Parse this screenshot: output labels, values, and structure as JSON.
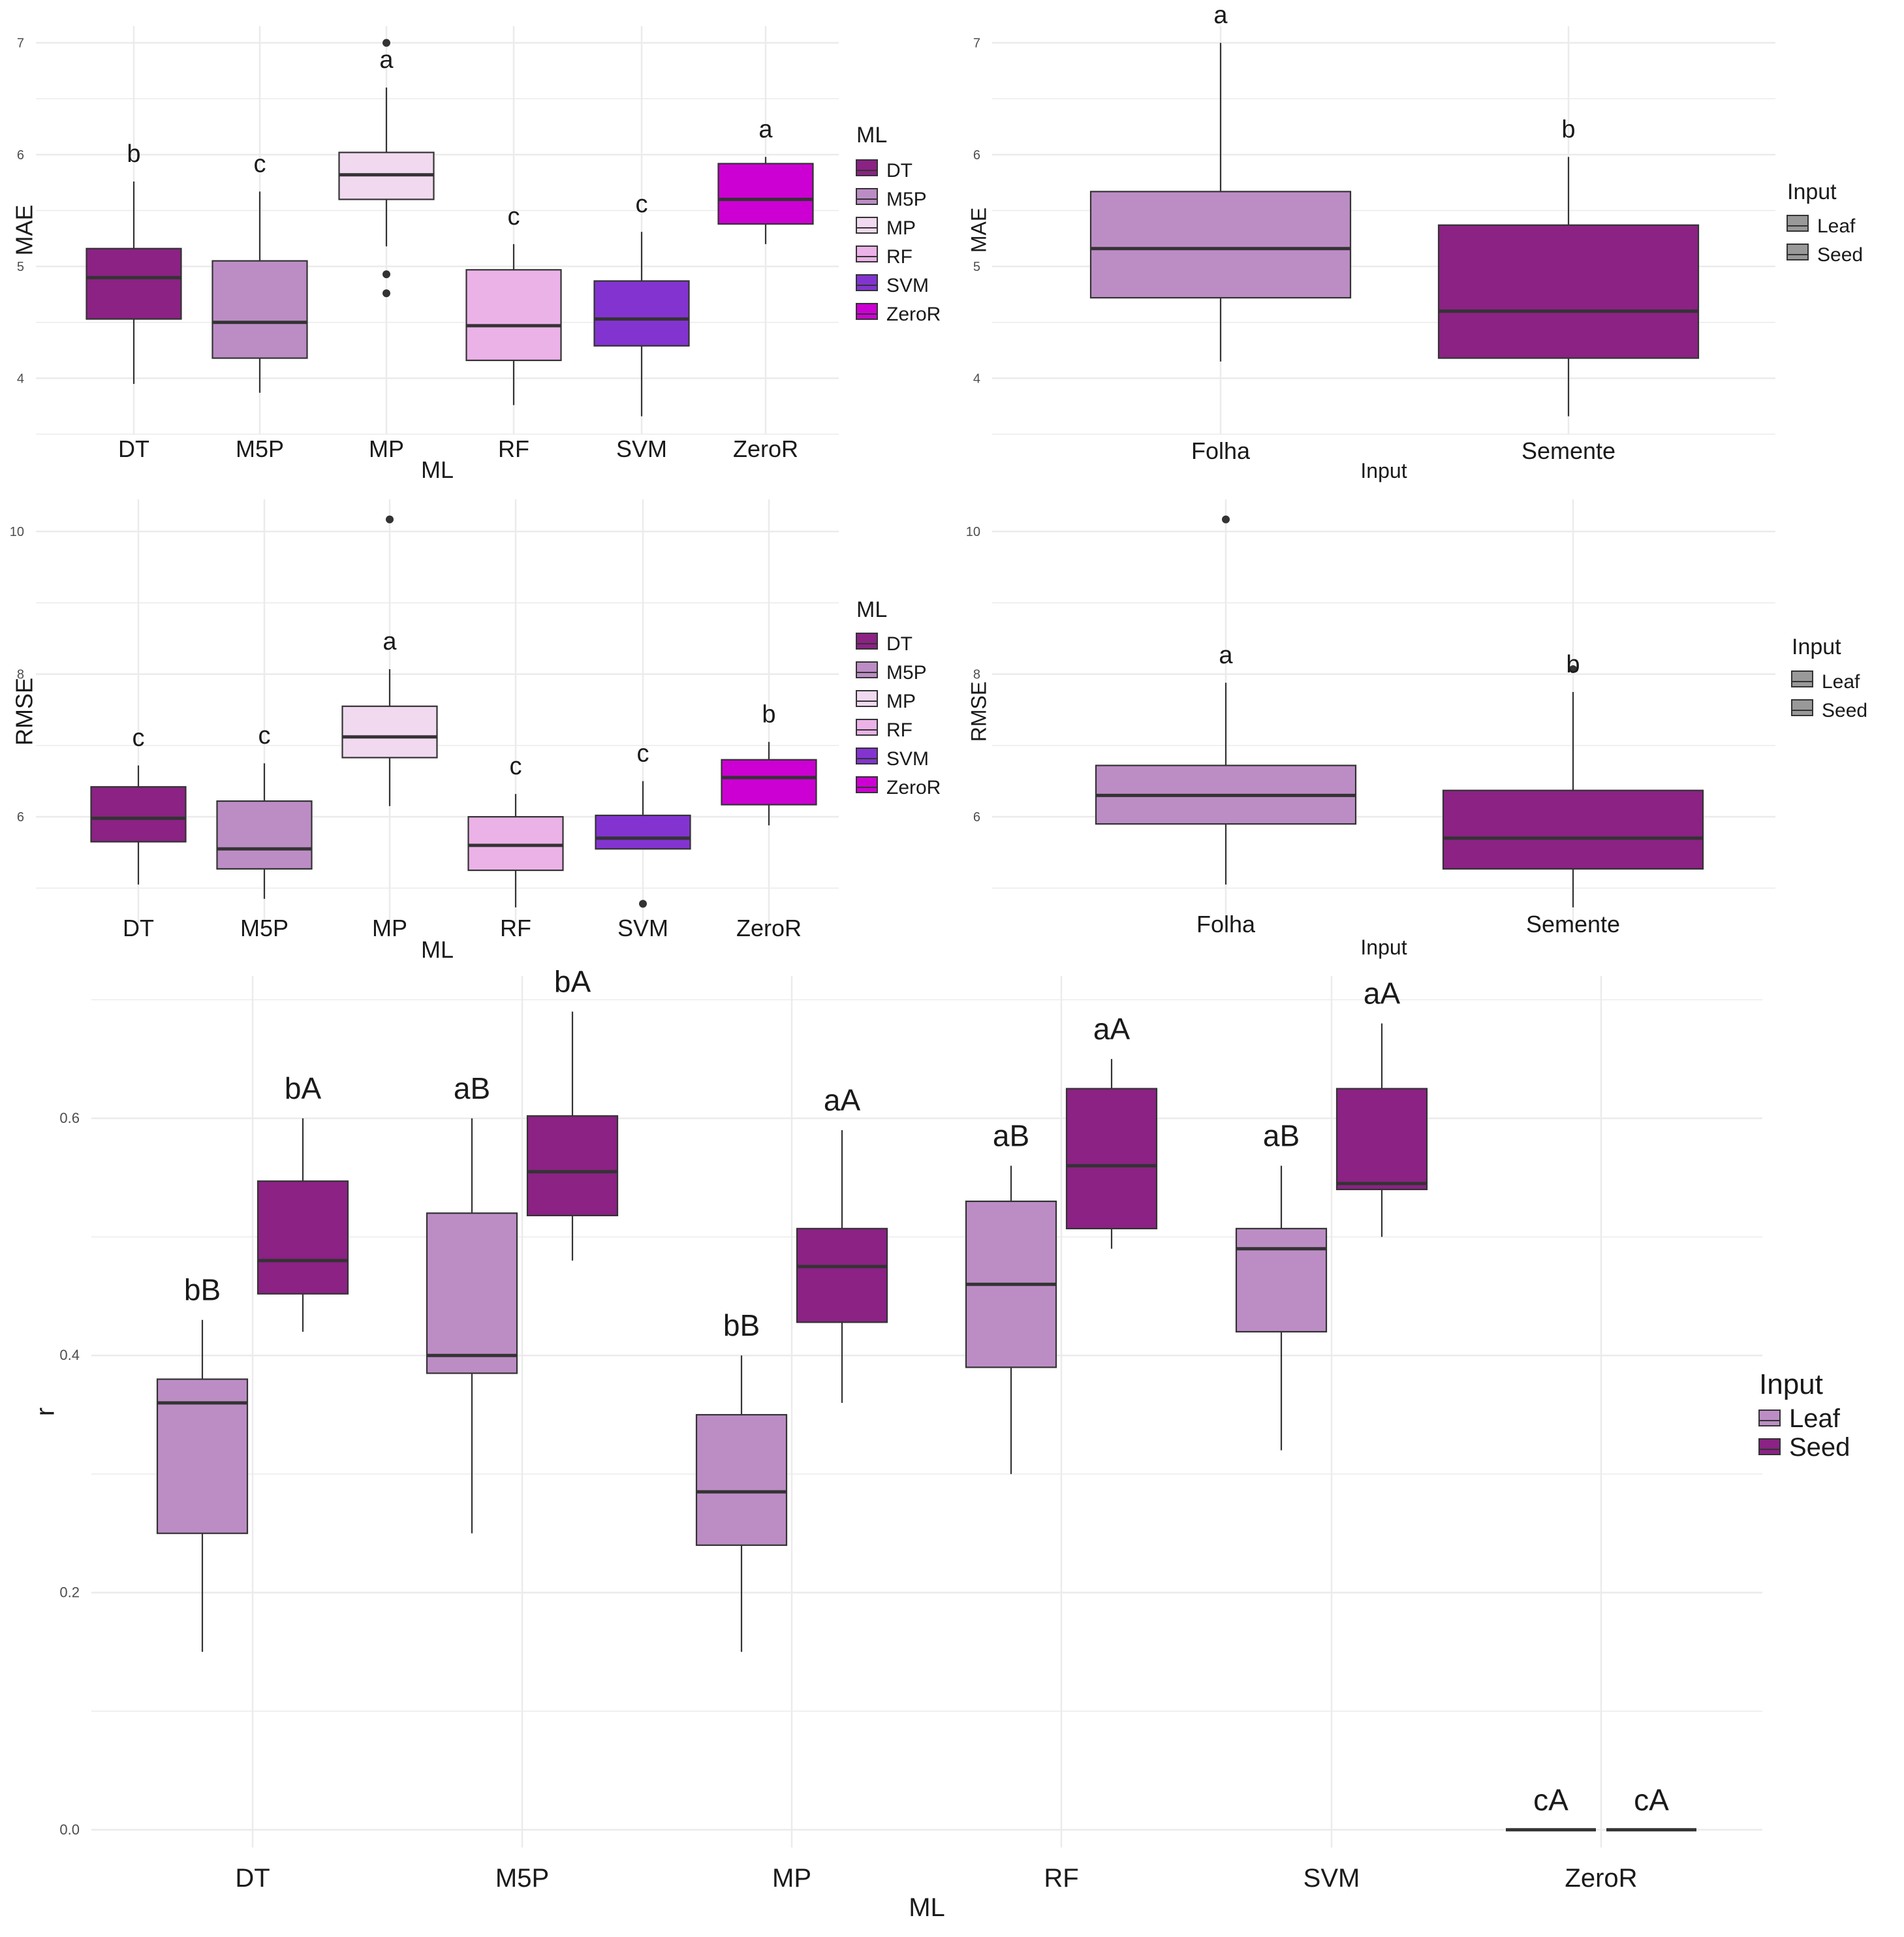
{
  "colors": {
    "grid": "#ebebeb",
    "box_stroke": "#333333",
    "whisker": "#333333",
    "text": "#1a1a1a",
    "tick_text": "#4d4d4d"
  },
  "chart_data": [
    {
      "type": "box",
      "title": "",
      "xlabel": "ML",
      "ylabel": "MAE",
      "ylim": [
        3.5,
        7.15
      ],
      "yticks": [
        4,
        5,
        6,
        7
      ],
      "categories": [
        "DT",
        "M5P",
        "MP",
        "RF",
        "SVM",
        "ZeroR"
      ],
      "legend": {
        "title": "ML",
        "position": "right",
        "entries": [
          "DT",
          "M5P",
          "MP",
          "RF",
          "SVM",
          "ZeroR"
        ]
      },
      "boxes": [
        {
          "category": "DT",
          "color": "#8b2284",
          "min": 3.95,
          "q1": 4.53,
          "median": 4.9,
          "q3": 5.16,
          "max": 5.76,
          "outliers": [],
          "letter": "b"
        },
        {
          "category": "M5P",
          "color": "#bc8dc5",
          "min": 3.87,
          "q1": 4.18,
          "median": 4.5,
          "q3": 5.05,
          "max": 5.67,
          "outliers": [],
          "letter": "c"
        },
        {
          "category": "MP",
          "color": "#f1d9ef",
          "min": 5.18,
          "q1": 5.6,
          "median": 5.82,
          "q3": 6.02,
          "max": 6.6,
          "outliers": [
            7.0,
            4.93,
            4.76
          ],
          "letter": "a"
        },
        {
          "category": "RF",
          "color": "#ebb2e8",
          "min": 3.76,
          "q1": 4.16,
          "median": 4.47,
          "q3": 4.97,
          "max": 5.2,
          "outliers": [],
          "letter": "c"
        },
        {
          "category": "SVM",
          "color": "#8334d0",
          "min": 3.66,
          "q1": 4.29,
          "median": 4.53,
          "q3": 4.87,
          "max": 5.31,
          "outliers": [],
          "letter": "c"
        },
        {
          "category": "ZeroR",
          "color": "#cc00d2",
          "min": 5.2,
          "q1": 5.38,
          "median": 5.6,
          "q3": 5.92,
          "max": 5.98,
          "outliers": [],
          "letter": "a"
        }
      ]
    },
    {
      "type": "box",
      "title": "",
      "xlabel": "Input",
      "ylabel": "MAE",
      "ylim": [
        3.5,
        7.15
      ],
      "yticks": [
        4,
        5,
        6,
        7
      ],
      "categories": [
        "Folha",
        "Semente"
      ],
      "legend": {
        "title": "Input",
        "position": "right",
        "entries": [
          "Leaf",
          "Seed"
        ]
      },
      "boxes": [
        {
          "category": "Folha",
          "color": "#bc8dc5",
          "min": 4.15,
          "q1": 4.72,
          "median": 5.16,
          "q3": 5.67,
          "max": 7.0,
          "outliers": [],
          "letter": "a"
        },
        {
          "category": "Semente",
          "color": "#8b2284",
          "min": 3.66,
          "q1": 4.18,
          "median": 4.6,
          "q3": 5.37,
          "max": 5.98,
          "outliers": [],
          "letter": "b"
        }
      ]
    },
    {
      "type": "box",
      "title": "",
      "xlabel": "ML",
      "ylabel": "RMSE",
      "ylim": [
        4.5,
        10.45
      ],
      "yticks": [
        6,
        8,
        10
      ],
      "categories": [
        "DT",
        "M5P",
        "MP",
        "RF",
        "SVM",
        "ZeroR"
      ],
      "legend": {
        "title": "ML",
        "position": "right",
        "entries": [
          "DT",
          "M5P",
          "MP",
          "RF",
          "SVM",
          "ZeroR"
        ]
      },
      "boxes": [
        {
          "category": "DT",
          "color": "#8b2284",
          "min": 5.05,
          "q1": 5.65,
          "median": 5.98,
          "q3": 6.42,
          "max": 6.72,
          "outliers": [],
          "letter": "c"
        },
        {
          "category": "M5P",
          "color": "#bc8dc5",
          "min": 4.85,
          "q1": 5.27,
          "median": 5.55,
          "q3": 6.22,
          "max": 6.75,
          "outliers": [],
          "letter": "c"
        },
        {
          "category": "MP",
          "color": "#f1d9ef",
          "min": 6.15,
          "q1": 6.83,
          "median": 7.12,
          "q3": 7.55,
          "max": 8.07,
          "outliers": [
            10.17
          ],
          "letter": "a"
        },
        {
          "category": "RF",
          "color": "#ebb2e8",
          "min": 4.73,
          "q1": 5.25,
          "median": 5.6,
          "q3": 6.0,
          "max": 6.32,
          "outliers": [],
          "letter": "c"
        },
        {
          "category": "SVM",
          "color": "#8334d0",
          "min": 5.55,
          "q1": 5.55,
          "median": 5.7,
          "q3": 6.02,
          "max": 6.5,
          "outliers": [
            4.78
          ],
          "letter": "c"
        },
        {
          "category": "ZeroR",
          "color": "#cc00d2",
          "min": 5.88,
          "q1": 6.17,
          "median": 6.55,
          "q3": 6.8,
          "max": 7.05,
          "outliers": [],
          "letter": "b"
        }
      ]
    },
    {
      "type": "box",
      "title": "",
      "xlabel": "Input",
      "ylabel": "RMSE",
      "ylim": [
        4.5,
        10.45
      ],
      "yticks": [
        6,
        8,
        10
      ],
      "categories": [
        "Folha",
        "Semente"
      ],
      "legend": {
        "title": "Input",
        "position": "right",
        "entries": [
          "Leaf",
          "Seed"
        ]
      },
      "boxes": [
        {
          "category": "Folha",
          "color": "#bc8dc5",
          "min": 5.05,
          "q1": 5.9,
          "median": 6.3,
          "q3": 6.72,
          "max": 7.88,
          "outliers": [
            10.17
          ],
          "letter": "a"
        },
        {
          "category": "Semente",
          "color": "#8b2284",
          "min": 4.73,
          "q1": 5.27,
          "median": 5.7,
          "q3": 6.37,
          "max": 7.75,
          "outliers": [
            8.07
          ],
          "letter": "b"
        }
      ]
    },
    {
      "type": "box",
      "title": "",
      "xlabel": "ML",
      "ylabel": "r",
      "ylim": [
        -0.015,
        0.72
      ],
      "yticks": [
        0.0,
        0.2,
        0.4,
        0.6
      ],
      "categories": [
        "DT",
        "M5P",
        "MP",
        "RF",
        "SVM",
        "ZeroR"
      ],
      "legend": {
        "title": "Input",
        "position": "right",
        "entries": [
          "Leaf",
          "Seed"
        ]
      },
      "boxes": [
        {
          "category": "DT",
          "group": "Leaf",
          "color": "#bc8dc5",
          "min": 0.15,
          "q1": 0.25,
          "median": 0.36,
          "q3": 0.38,
          "max": 0.43,
          "outliers": [],
          "letter": "bB"
        },
        {
          "category": "DT",
          "group": "Seed",
          "color": "#8b2284",
          "min": 0.42,
          "q1": 0.452,
          "median": 0.48,
          "q3": 0.547,
          "max": 0.6,
          "outliers": [],
          "letter": "bA"
        },
        {
          "category": "M5P",
          "group": "Leaf",
          "color": "#bc8dc5",
          "min": 0.25,
          "q1": 0.385,
          "median": 0.4,
          "q3": 0.52,
          "max": 0.6,
          "outliers": [],
          "letter": "aB"
        },
        {
          "category": "M5P",
          "group": "Seed",
          "color": "#8b2284",
          "min": 0.48,
          "q1": 0.518,
          "median": 0.555,
          "q3": 0.602,
          "max": 0.69,
          "outliers": [],
          "letter": "bA"
        },
        {
          "category": "MP",
          "group": "Leaf",
          "color": "#bc8dc5",
          "min": 0.15,
          "q1": 0.24,
          "median": 0.285,
          "q3": 0.35,
          "max": 0.4,
          "outliers": [],
          "letter": "bB"
        },
        {
          "category": "MP",
          "group": "Seed",
          "color": "#8b2284",
          "min": 0.36,
          "q1": 0.428,
          "median": 0.475,
          "q3": 0.507,
          "max": 0.59,
          "outliers": [],
          "letter": "aA"
        },
        {
          "category": "RF",
          "group": "Leaf",
          "color": "#bc8dc5",
          "min": 0.3,
          "q1": 0.39,
          "median": 0.46,
          "q3": 0.53,
          "max": 0.56,
          "outliers": [],
          "letter": "aB"
        },
        {
          "category": "RF",
          "group": "Seed",
          "color": "#8b2284",
          "min": 0.49,
          "q1": 0.507,
          "median": 0.56,
          "q3": 0.625,
          "max": 0.65,
          "outliers": [],
          "letter": "aA"
        },
        {
          "category": "SVM",
          "group": "Leaf",
          "color": "#bc8dc5",
          "min": 0.32,
          "q1": 0.42,
          "median": 0.49,
          "q3": 0.507,
          "max": 0.56,
          "outliers": [],
          "letter": "aB"
        },
        {
          "category": "SVM",
          "group": "Seed",
          "color": "#8b2284",
          "min": 0.5,
          "q1": 0.54,
          "median": 0.545,
          "q3": 0.625,
          "max": 0.68,
          "outliers": [],
          "letter": "aA"
        },
        {
          "category": "ZeroR",
          "group": "Leaf",
          "color": "#bc8dc5",
          "min": 0.0,
          "q1": 0.0,
          "median": 0.0,
          "q3": 0.0,
          "max": 0.0,
          "outliers": [],
          "letter": "cA"
        },
        {
          "category": "ZeroR",
          "group": "Seed",
          "color": "#8b2284",
          "min": 0.0,
          "q1": 0.0,
          "median": 0.0,
          "q3": 0.0,
          "max": 0.0,
          "outliers": [],
          "letter": "cA"
        }
      ]
    }
  ]
}
